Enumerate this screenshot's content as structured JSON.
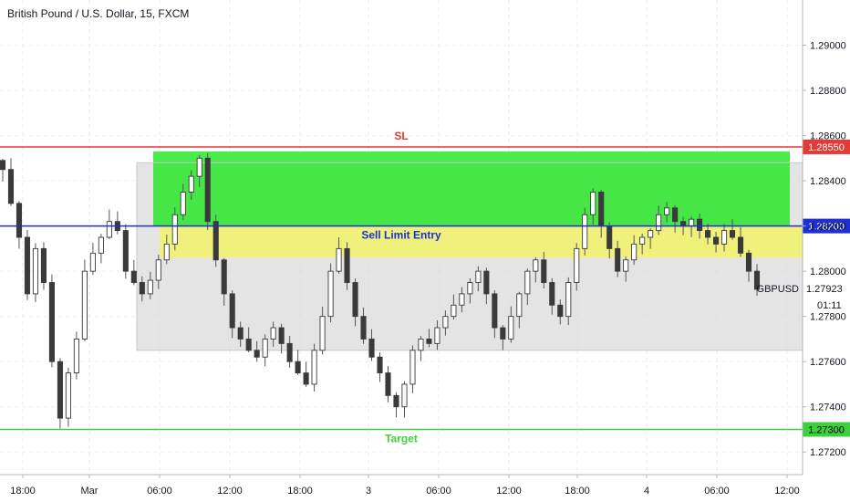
{
  "chart_title": "British Pound / U.S. Dollar, 15, FXCM",
  "colors": {
    "sl": "#e53935",
    "entry": "#1e2fd6",
    "target": "#3ecf3e",
    "zone_green": "#22e622",
    "zone_yellow": "#f2f26a",
    "range_box": "#d8d8d8",
    "candle": "#444444"
  },
  "chart_data": {
    "type": "candlestick",
    "title": "British Pound / U.S. Dollar, 15, FXCM",
    "symbol": "GBPUSD",
    "ylim": [
      1.271,
      1.292
    ],
    "y_ticks": [
      "1.29000",
      "1.28800",
      "1.28600",
      "1.28400",
      "1.28200",
      "1.28000",
      "1.27800",
      "1.27600",
      "1.27400",
      "1.27200"
    ],
    "x_ticks": [
      "18:00",
      "Mar",
      "06:00",
      "12:00",
      "18:00",
      "3",
      "06:00",
      "12:00",
      "18:00",
      "4",
      "06:00",
      "12:00"
    ],
    "levels": [
      {
        "name": "SL",
        "label": "SL",
        "price": 1.2855,
        "price_label": "1.28550",
        "color": "#e53935"
      },
      {
        "name": "Sell Limit Entry",
        "label": "Sell Limit Entry",
        "price": 1.282,
        "price_label": "1.28200",
        "color": "#1e2fd6"
      },
      {
        "name": "Target",
        "label": "Target",
        "price": 1.273,
        "price_label": "1.27300",
        "color": "#3ecf3e"
      }
    ],
    "zones": [
      {
        "name": "stop-zone",
        "from": 1.282,
        "to": 1.2853,
        "color": "#22e622"
      },
      {
        "name": "entry-zone",
        "from": 1.2806,
        "to": 1.282,
        "color": "#f2f26a"
      },
      {
        "name": "range-box",
        "from": 1.2765,
        "to": 1.2848,
        "color": "#d8d8d8"
      }
    ],
    "last_price": {
      "symbol": "GBPUSD",
      "price": 1.27923,
      "price_label": "1.27923",
      "countdown": "01:11"
    },
    "closes": [
      1.2845,
      1.283,
      1.2815,
      1.279,
      1.281,
      1.2795,
      1.276,
      1.2735,
      1.2755,
      1.277,
      1.28,
      1.2808,
      1.2815,
      1.2822,
      1.2818,
      1.28,
      1.2795,
      1.279,
      1.2796,
      1.2805,
      1.2812,
      1.2825,
      1.2835,
      1.2842,
      1.285,
      1.2822,
      1.2805,
      1.279,
      1.2775,
      1.277,
      1.2765,
      1.2762,
      1.277,
      1.2775,
      1.2768,
      1.276,
      1.2755,
      1.275,
      1.2765,
      1.278,
      1.28,
      1.281,
      1.2795,
      1.278,
      1.277,
      1.2762,
      1.2755,
      1.2745,
      1.274,
      1.275,
      1.2765,
      1.277,
      1.2768,
      1.2775,
      1.278,
      1.2785,
      1.279,
      1.2795,
      1.28,
      1.279,
      1.2775,
      1.277,
      1.278,
      1.279,
      1.28,
      1.2805,
      1.2795,
      1.2785,
      1.278,
      1.2795,
      1.281,
      1.2825,
      1.2835,
      1.282,
      1.281,
      1.28,
      1.2805,
      1.2812,
      1.2815,
      1.2818,
      1.2825,
      1.2828,
      1.2822,
      1.282,
      1.2823,
      1.2818,
      1.2815,
      1.2812,
      1.2818,
      1.2815,
      1.2808,
      1.28,
      1.2792
    ]
  }
}
